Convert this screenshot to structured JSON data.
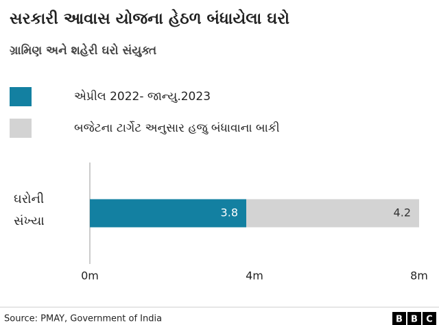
{
  "chart_data": {
    "type": "stacked-bar-horizontal",
    "title": "સરકારી આવાસ યોજના હેઠળ બંધાયેલા ઘરો",
    "subtitle": "ગ્રામિણ અને શહેરી ઘરો સંયુક્ત",
    "categories": [
      "ઘરોની સંખ્યા"
    ],
    "series": [
      {
        "name": "એપ્રીલ 2022- જાન્યુ.2023",
        "color": "#1380a1",
        "values": [
          3.8
        ]
      },
      {
        "name": "બજેટના ટાર્ગેટ અનુસાર હજુ બંધાવાના બાકી",
        "color": "#d3d3d3",
        "values": [
          4.2
        ]
      }
    ],
    "xlim": [
      0,
      8
    ],
    "xticks": [
      {
        "value": 0,
        "label": "0m"
      },
      {
        "value": 4,
        "label": "4m"
      },
      {
        "value": 8,
        "label": "8m"
      }
    ],
    "source": "Source: PMAY, Government of India",
    "logo": [
      "B",
      "B",
      "C"
    ]
  }
}
